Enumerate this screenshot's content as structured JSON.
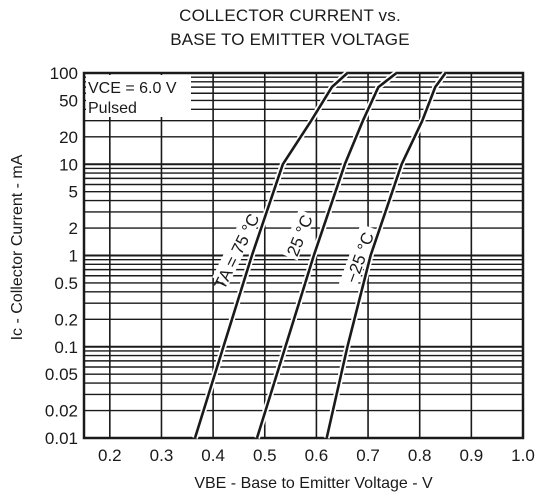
{
  "chart_data": {
    "type": "line",
    "title": "COLLECTOR CURRENT vs.",
    "subtitle": "BASE TO EMITTER VOLTAGE",
    "xlabel": "VBE - Base to Emitter Voltage - V",
    "ylabel": "Ic - Collector Current - mA",
    "xlim": [
      0.15,
      1.0
    ],
    "ylim": [
      0.01,
      100
    ],
    "yscale": "log",
    "grid": true,
    "x_ticks": [
      "0.2",
      "0.3",
      "0.4",
      "0.5",
      "0.6",
      "0.7",
      "0.8",
      "0.9",
      "1.0"
    ],
    "y_ticks": [
      "0.01",
      "0.02",
      "0.05",
      "0.1",
      "0.2",
      "0.5",
      "1",
      "2",
      "5",
      "10",
      "20",
      "50",
      "100"
    ],
    "conditions": [
      "VCE = 6.0 V",
      "Pulsed"
    ],
    "series": [
      {
        "name": "TA = 75 °C",
        "points": [
          [
            0.365,
            0.01
          ],
          [
            0.42,
            0.1
          ],
          [
            0.475,
            1
          ],
          [
            0.535,
            10
          ],
          [
            0.59,
            30
          ],
          [
            0.63,
            70
          ],
          [
            0.66,
            100
          ]
        ]
      },
      {
        "name": "25 °C",
        "points": [
          [
            0.485,
            0.01
          ],
          [
            0.54,
            0.1
          ],
          [
            0.595,
            1
          ],
          [
            0.655,
            10
          ],
          [
            0.69,
            30
          ],
          [
            0.72,
            70
          ],
          [
            0.755,
            100
          ]
        ]
      },
      {
        "name": "−25 °C",
        "points": [
          [
            0.62,
            0.01
          ],
          [
            0.66,
            0.1
          ],
          [
            0.705,
            1
          ],
          [
            0.765,
            10
          ],
          [
            0.805,
            30
          ],
          [
            0.83,
            70
          ],
          [
            0.85,
            100
          ]
        ]
      }
    ]
  }
}
